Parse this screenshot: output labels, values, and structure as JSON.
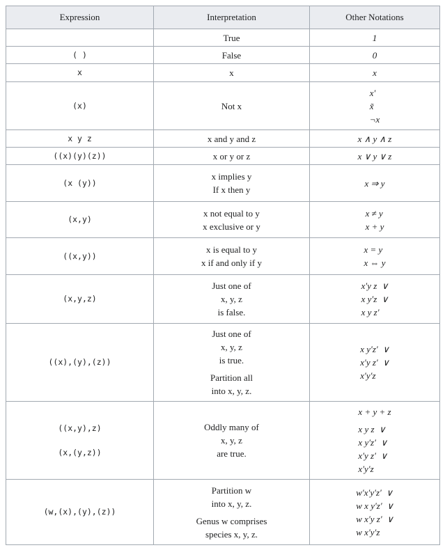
{
  "headers": [
    "Expression",
    "Interpretation",
    "Other Notations"
  ],
  "rows": [
    {
      "h": 25,
      "expr": [
        [
          ""
        ]
      ],
      "interp": [
        [
          "True"
        ]
      ],
      "notes": [
        [
          "1"
        ]
      ]
    },
    {
      "h": 25,
      "expr": [
        [
          "( )"
        ]
      ],
      "interp": [
        [
          "False"
        ]
      ],
      "notes": [
        [
          "0"
        ]
      ]
    },
    {
      "h": 26,
      "expr": [
        [
          "x"
        ]
      ],
      "interp": [
        [
          "x"
        ]
      ],
      "notes": [
        [
          "x"
        ]
      ]
    },
    {
      "h": 69,
      "expr": [
        [
          "(x)"
        ]
      ],
      "interp": [
        [
          "Not x"
        ]
      ],
      "notes": [
        [
          "x′",
          "x̃",
          "¬x"
        ]
      ]
    },
    {
      "h": 25,
      "expr": [
        [
          "x y z"
        ]
      ],
      "interp": [
        [
          "x and y and z"
        ]
      ],
      "notes": [
        [
          "x ∧ y ∧ z"
        ]
      ]
    },
    {
      "h": 25,
      "expr": [
        [
          "((x)(y)(z))"
        ]
      ],
      "interp": [
        [
          "x or y or z"
        ]
      ],
      "notes": [
        [
          "x ∨ y ∨ z"
        ]
      ]
    },
    {
      "h": 53,
      "expr": [
        [
          "(x (y))"
        ]
      ],
      "interp": [
        [
          "x implies y",
          "If x then y"
        ]
      ],
      "notes": [
        [
          "x ⇒ y"
        ]
      ]
    },
    {
      "h": 52,
      "expr": [
        [
          "(x,y)"
        ]
      ],
      "interp": [
        [
          "x not equal to y",
          "x exclusive or y"
        ]
      ],
      "notes": [
        [
          "x ≠ y",
          "x + y"
        ]
      ]
    },
    {
      "h": 53,
      "expr": [
        [
          "((x,y))"
        ]
      ],
      "interp": [
        [
          "x is equal to y",
          "x if and only if y"
        ]
      ],
      "notes": [
        [
          "x = y",
          "x ⇔ y"
        ]
      ]
    },
    {
      "h": 70,
      "expr": [
        [
          "(x,y,z)"
        ]
      ],
      "interp": [
        [
          "Just one of",
          "x, y, z",
          "is false."
        ]
      ],
      "notes": [
        [
          "x′y z  ∨",
          "x y′z  ∨",
          "x y z′"
        ]
      ]
    },
    {
      "h": 112,
      "expr": [
        [
          "((x),(y),(z))"
        ]
      ],
      "interp": [
        [
          "Just one of",
          "x, y, z",
          "is true."
        ],
        [
          "Partition all",
          "into x, y, z."
        ]
      ],
      "notes": [
        [
          "x y′z′  ∨",
          "x′y z′  ∨",
          "x′y′z"
        ]
      ]
    },
    {
      "h": 112,
      "expr": [
        [
          "((x,y),z)"
        ],
        [
          "(x,(y,z))"
        ]
      ],
      "interp": [
        [
          "Oddly many of",
          "x, y, z",
          "are true."
        ]
      ],
      "notes": [
        [
          "x + y + z"
        ],
        [
          "x y z  ∨",
          "x y′z′  ∨",
          "x′y z′  ∨",
          "x′y′z"
        ]
      ]
    },
    {
      "h": 94,
      "expr": [
        [
          "(w,(x),(y),(z))"
        ]
      ],
      "interp": [
        [
          "Partition w",
          "into x, y, z."
        ],
        [
          "Genus w comprises",
          "species x, y, z."
        ]
      ],
      "notes": [
        [
          "w′x′y′z′  ∨",
          "w x y′z′  ∨",
          "w x′y z′  ∨",
          "w x′y′z"
        ]
      ]
    }
  ]
}
